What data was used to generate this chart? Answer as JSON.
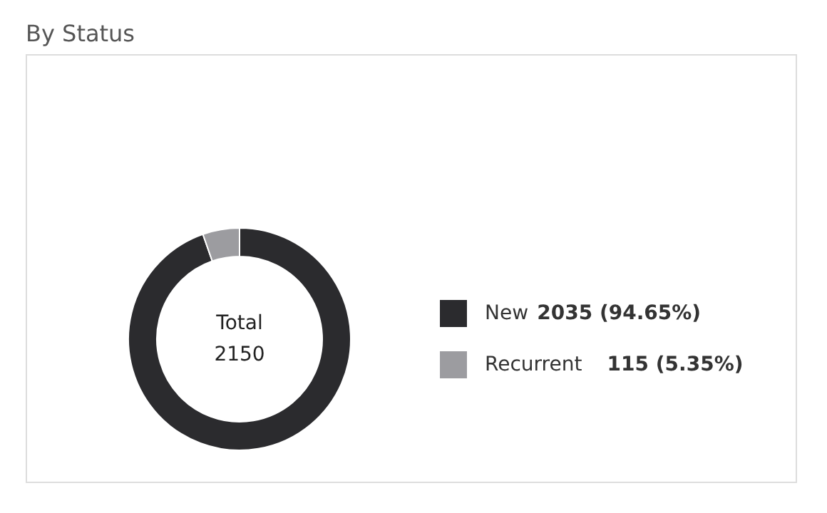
{
  "chart_data": {
    "type": "donut",
    "title": "By Status",
    "categories": [
      "New",
      "Recurrent"
    ],
    "values": [
      2035,
      115
    ],
    "colors": [
      "#2b2b2e",
      "#9c9ca0"
    ],
    "value_labels": [
      "2035 (94.65%)",
      "115 (5.35%)"
    ],
    "annotations": [
      "Total",
      "2150"
    ],
    "legend": "right"
  }
}
